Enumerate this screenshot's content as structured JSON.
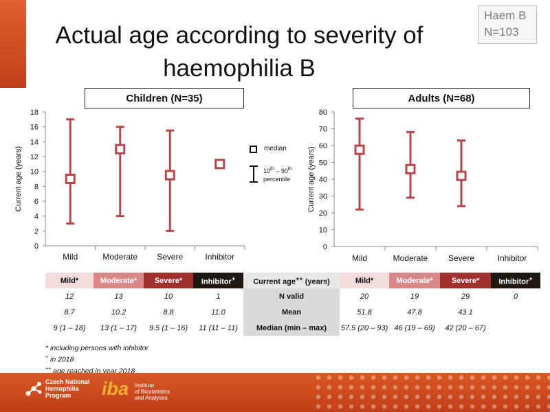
{
  "slide": {
    "title_line1": "Actual age according to severity of",
    "title_line2": "haemophilia B",
    "tag_line1": "Haem B",
    "tag_line2": "N=103"
  },
  "legend": {
    "median_label": "median",
    "range_label_a": "10",
    "range_label_a_sup": "th",
    "range_label_b": " – 90",
    "range_label_b_sup": "th",
    "range_label_c": "percentile"
  },
  "chart_data": [
    {
      "type": "errorbar",
      "title": "Children (N=35)",
      "ylabel": "Current age (years)",
      "ylim": [
        0,
        18
      ],
      "yticks": [
        0,
        2,
        4,
        6,
        8,
        10,
        12,
        14,
        16,
        18
      ],
      "categories": [
        "Mild",
        "Moderate",
        "Severe",
        "Inhibitor"
      ],
      "median": [
        9,
        13,
        9.5,
        11
      ],
      "p10": [
        3,
        4,
        2,
        11
      ],
      "p90": [
        17,
        16,
        15.5,
        11
      ],
      "marker_color": "#b5464a"
    },
    {
      "type": "errorbar",
      "title": "Adults (N=68)",
      "ylabel": "Current age (years)",
      "ylim": [
        0,
        80
      ],
      "yticks": [
        0,
        10,
        20,
        30,
        40,
        50,
        60,
        70,
        80
      ],
      "categories": [
        "Mild",
        "Moderate",
        "Severe",
        "Inhibitor"
      ],
      "median": [
        57.5,
        46,
        42,
        null
      ],
      "p10": [
        22,
        29,
        24,
        null
      ],
      "p90": [
        76,
        68,
        63,
        null
      ],
      "marker_color": "#b5464a"
    }
  ],
  "table": {
    "children_header": [
      "Mild*",
      "Moderate*",
      "Severe*",
      "Inhibitor"
    ],
    "inhibitor_sup": "+",
    "middle_header": "Current age",
    "middle_header_sup": "++",
    "middle_header_suffix": " (years)",
    "adults_header": [
      "Mild*",
      "Moderate*",
      "Severe*",
      "Inhibitor"
    ],
    "rows": [
      {
        "label": "N valid",
        "children": [
          "12",
          "13",
          "10",
          "1"
        ],
        "adults": [
          "20",
          "19",
          "29",
          "0"
        ]
      },
      {
        "label": "Mean",
        "children": [
          "8.7",
          "10.2",
          "8.8",
          "11.0"
        ],
        "adults": [
          "51.8",
          "47.8",
          "43.1",
          ""
        ]
      },
      {
        "label": "Median (min – max)",
        "children": [
          "9 (1 – 18)",
          "13 (1 – 17)",
          "9.5 (1 – 16)",
          "11 (11 – 11)"
        ],
        "adults": [
          "57.5 (20 – 93)",
          "46 (19 – 69)",
          "42 (20 – 67)",
          ""
        ]
      }
    ]
  },
  "footnotes": {
    "f1": "* including persons with inhibitor",
    "f2_sup": "+",
    "f2": " in 2018",
    "f3_sup": "++",
    "f3": " age reached in year 2018"
  },
  "footer": {
    "cnhp_line1": "Czech National",
    "cnhp_line2": "Hemophilia",
    "cnhp_line3": "Program",
    "iba_mark": "iba",
    "iba_line1": "Institute",
    "iba_line2": "of Biostatistics",
    "iba_line3": "and Analyses"
  },
  "colors": {
    "accent_orange": "#d0501f",
    "marker": "#b5464a",
    "mild": "#f2dcdc",
    "moderate": "#d98888",
    "severe": "#a0302d",
    "inhibitor": "#1e1712"
  }
}
